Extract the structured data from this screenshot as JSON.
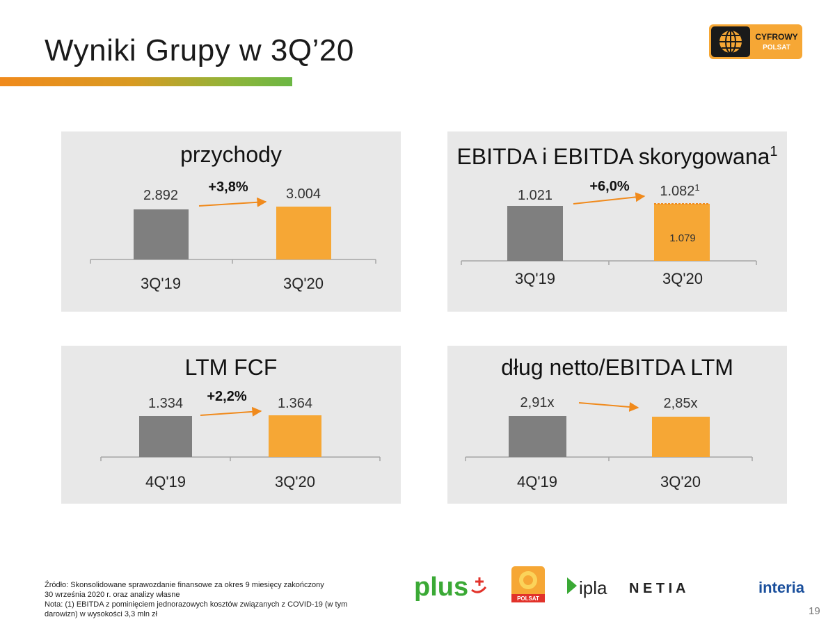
{
  "header": {
    "title": "Wyniki Grupy w 3Q’20",
    "logo_text_1": "CYFROWY",
    "logo_text_2": "POLSAT"
  },
  "colors": {
    "prev": "#7f7f7f",
    "curr": "#f6a735",
    "arrow": "#f08a1c",
    "panel": "#e8e8e8"
  },
  "chart_data": [
    {
      "type": "bar",
      "title": "przychody",
      "categories": [
        "3Q'19",
        "3Q'20"
      ],
      "values": [
        2892,
        3004
      ],
      "value_labels": [
        "2.892",
        "3.004"
      ],
      "change_label": "+3,8%"
    },
    {
      "type": "bar",
      "title": "EBITDA i EBITDA skorygowana",
      "title_sup": "1",
      "categories": [
        "3Q'19",
        "3Q'20"
      ],
      "values": [
        1021,
        1082
      ],
      "value_labels": [
        "1.021",
        "1.082"
      ],
      "value_label_sup": "1",
      "inner_value": 1079,
      "inner_label": "1.079",
      "change_label": "+6,0%"
    },
    {
      "type": "bar",
      "title": "LTM FCF",
      "categories": [
        "4Q'19",
        "3Q'20"
      ],
      "values": [
        1334,
        1364
      ],
      "value_labels": [
        "1.334",
        "1.364"
      ],
      "change_label": "+2,2%"
    },
    {
      "type": "bar",
      "title": "dług netto/EBITDA LTM",
      "categories": [
        "4Q'19",
        "3Q'20"
      ],
      "values": [
        2.91,
        2.85
      ],
      "value_labels": [
        "2,91x",
        "2,85x"
      ],
      "change_label": ""
    }
  ],
  "footer": {
    "line1": "Źródło: Skonsolidowane sprawozdanie finansowe za okres 9 miesięcy zakończony",
    "line2": "30 września 2020 r. oraz analizy własne",
    "line3": "Nota: (1) EBITDA z pominięciem jednorazowych kosztów związanych z COVID-19 (w tym",
    "line4": "darowizn) w wysokości 3,3 mln zł"
  },
  "brands": {
    "plus": "plus",
    "polsat": "POLSAT",
    "ipla": "ipla",
    "netia": "N E T I A",
    "interia": "interia"
  },
  "page_number": "19"
}
